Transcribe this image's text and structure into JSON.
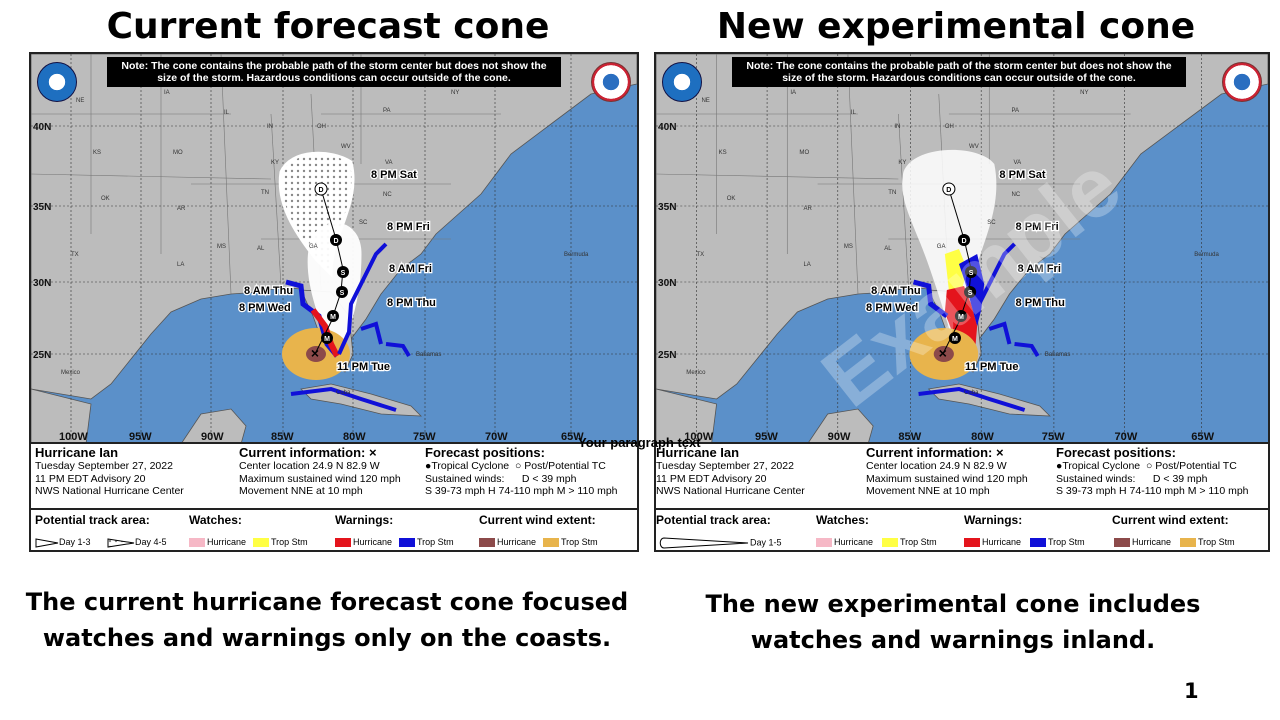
{
  "headings": {
    "left": "Current forecast cone",
    "right": "New experimental cone"
  },
  "note": "Note: The cone contains the probable path of the storm center but does not show the size of the storm. Hazardous conditions can occur outside of the cone.",
  "latitudes": [
    "40N",
    "35N",
    "30N",
    "25N"
  ],
  "longitudes": [
    "100W",
    "95W",
    "90W",
    "85W",
    "80W",
    "75W",
    "70W",
    "65W"
  ],
  "places": {
    "mexico": "Mexico",
    "cuba": "Cuba",
    "bahamas": "Bahamas",
    "bermuda": "Bermuda"
  },
  "states": [
    "NE",
    "IA",
    "IL",
    "IN",
    "OH",
    "PA",
    "NY",
    "KS",
    "MO",
    "KY",
    "WV",
    "VA",
    "OK",
    "AR",
    "TN",
    "NC",
    "SC",
    "MS",
    "AL",
    "GA",
    "LA",
    "TX"
  ],
  "forecast_labels": [
    "8 PM Sat",
    "8 PM Fri",
    "8 AM Fri",
    "8 PM Thu",
    "8 AM Thu",
    "8 PM Wed",
    "11 PM Tue"
  ],
  "point_markers": {
    "d": "D",
    "s": "S",
    "m": "M",
    "x": "×"
  },
  "info": {
    "storm": "Hurricane Ian",
    "date": "Tuesday September 27, 2022",
    "advisory": "11 PM EDT Advisory 20",
    "center": "NWS National Hurricane Center",
    "current_title": "Current information: ×",
    "location": "Center location 24.9 N 82.9 W",
    "wind": "Maximum sustained wind 120 mph",
    "movement": "Movement NNE at 10 mph",
    "forecast_title": "Forecast positions:",
    "tropical": "●Tropical Cyclone",
    "post": "○ Post/Potential TC",
    "sustained": "Sustained winds:",
    "d_range": "D < 39 mph",
    "ranges": "S 39-73 mph  H 74-110 mph  M > 110 mph"
  },
  "legend": {
    "track_area": "Potential track area:",
    "day13": "Day 1-3",
    "day45": "Day 4-5",
    "day15": "Day 1-5",
    "watches": "Watches:",
    "warnings": "Warnings:",
    "wind_extent": "Current wind extent:",
    "hurricane": "Hurricane",
    "trop_stm": "Trop Stm"
  },
  "colors": {
    "ocean": "#5b90c9",
    "land": "#bcbcbc",
    "hurricane_watch": "#f6b8c6",
    "trop_storm_watch": "#ffff44",
    "hurricane_warning": "#e4141c",
    "trop_storm_warning": "#1010d8",
    "hurricane_wind": "#8c4a4a",
    "trop_storm_wind": "#e8b44c"
  },
  "watermark": "Example",
  "paragraph_text": "Your paragraph text",
  "captions": {
    "left": "The current hurricane forecast cone focused watches and warnings only on the coasts.",
    "right": "The new experimental cone includes watches and warnings inland."
  },
  "page_number": "1"
}
